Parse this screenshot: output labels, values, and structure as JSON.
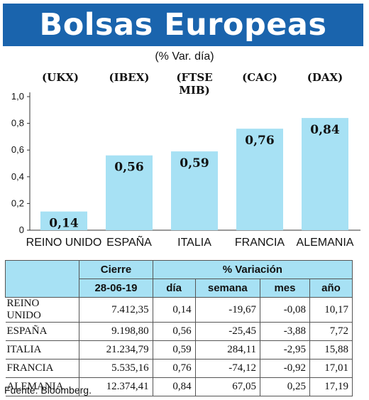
{
  "header": {
    "title": "Bolsas Europeas",
    "subtitle": "(% Var. día)"
  },
  "codes": [
    "(UKX)",
    "(IBEX)",
    "(FTSE MIB)",
    "(CAC)",
    "(DAX)"
  ],
  "chart_data": {
    "type": "bar",
    "categories": [
      "REINO UNIDO",
      "ESPAÑA",
      "ITALIA",
      "FRANCIA",
      "ALEMANIA"
    ],
    "values": [
      0.14,
      0.56,
      0.59,
      0.76,
      0.84
    ],
    "value_labels": [
      "0,14",
      "0,56",
      "0,59",
      "0,76",
      "0,84"
    ],
    "ylim": [
      0,
      1.0
    ],
    "y_ticks": [
      "0",
      "0,2",
      "0,4",
      "0,6",
      "0,8",
      "1,0"
    ],
    "bar_color": "#a7e1f4",
    "grid": false
  },
  "table": {
    "group_headers": {
      "cierre": "Cierre",
      "variacion": "% Variación"
    },
    "columns": [
      "28-06-19",
      "día",
      "semana",
      "mes",
      "año"
    ],
    "rows": [
      {
        "name": "REINO UNIDO",
        "cierre": "7.412,35",
        "dia": "0,14",
        "semana": "-19,67",
        "mes": "-0,08",
        "anio": "10,17"
      },
      {
        "name": "ESPAÑA",
        "cierre": "9.198,80",
        "dia": "0,56",
        "semana": "-25,45",
        "mes": "-3,88",
        "anio": "7,72"
      },
      {
        "name": "ITALIA",
        "cierre": "21.234,79",
        "dia": "0,59",
        "semana": "284,11",
        "mes": "-2,95",
        "anio": "15,88"
      },
      {
        "name": "FRANCIA",
        "cierre": "5.535,16",
        "dia": "0,76",
        "semana": "-74,12",
        "mes": "-0,92",
        "anio": "17,01"
      },
      {
        "name": "ALEMANIA",
        "cierre": "12.374,41",
        "dia": "0,84",
        "semana": "67,05",
        "mes": "0,25",
        "anio": "17,19"
      }
    ]
  },
  "source": "Fuente: Bloomberg.",
  "colors": {
    "banner": "#1a64ad",
    "bar": "#a7e1f4",
    "header_fill": "#a7e1f4"
  }
}
